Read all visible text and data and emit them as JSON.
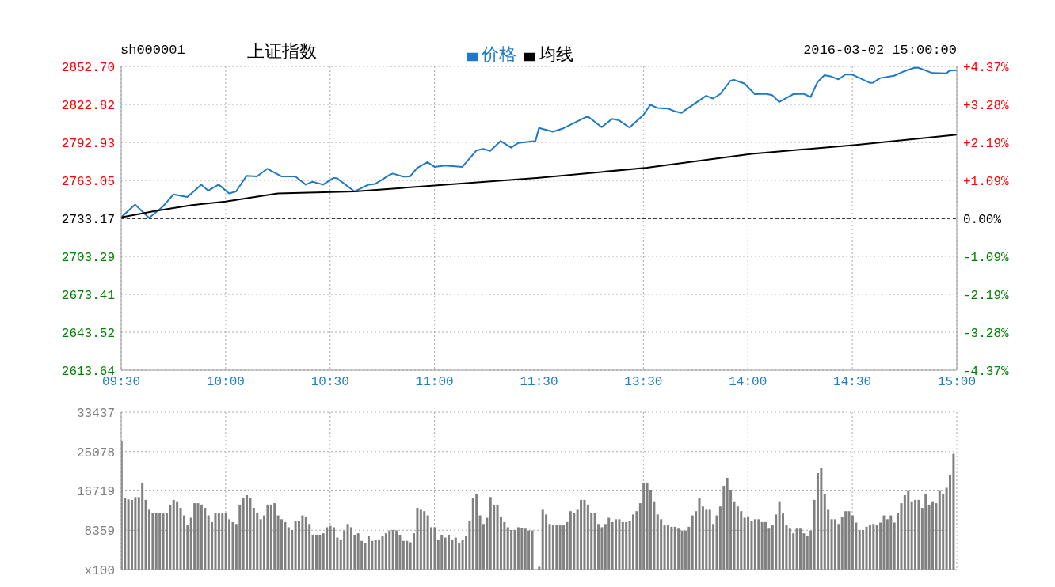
{
  "chart_data": [
    {
      "type": "line",
      "title": "上证指数",
      "subtitle": "sh000001",
      "annotations": [
        "2016-03-02 15:00:00"
      ],
      "categories": [
        "09:30",
        null,
        null,
        null,
        null,
        null,
        null,
        null,
        null,
        null,
        null,
        null,
        null,
        null,
        null,
        null,
        null,
        null,
        null,
        null,
        null,
        null,
        null,
        null,
        null,
        null,
        null,
        null,
        null,
        null,
        "10:00",
        null,
        null,
        null,
        null,
        null,
        null,
        null,
        null,
        null,
        null,
        null,
        null,
        null,
        null,
        null,
        null,
        null,
        null,
        null,
        null,
        null,
        null,
        null,
        null,
        null,
        null,
        null,
        null,
        null,
        "10:30",
        null,
        null,
        null,
        null,
        null,
        null,
        null,
        null,
        null,
        null,
        null,
        null,
        null,
        null,
        null,
        null,
        null,
        null,
        null,
        null,
        null,
        null,
        null,
        null,
        null,
        null,
        null,
        null,
        null,
        "11:00",
        null,
        null,
        null,
        null,
        null,
        null,
        null,
        null,
        null,
        null,
        null,
        null,
        null,
        null,
        null,
        null,
        null,
        null,
        null,
        null,
        null,
        null,
        null,
        null,
        null,
        null,
        null,
        null,
        null,
        "11:30",
        null,
        null,
        null,
        null,
        null,
        null,
        null,
        null,
        null,
        null,
        null,
        null,
        null,
        null,
        null,
        null,
        null,
        null,
        null,
        null,
        null,
        null,
        null,
        null,
        null,
        null,
        null,
        null,
        null,
        "13:30",
        null,
        null,
        null,
        null,
        null,
        null,
        null,
        null,
        null,
        null,
        null,
        null,
        null,
        null,
        null,
        null,
        null,
        null,
        null,
        null,
        null,
        null,
        null,
        null,
        null,
        null,
        null,
        null,
        null,
        "14:00",
        null,
        null,
        null,
        null,
        null,
        null,
        null,
        null,
        null,
        null,
        null,
        null,
        null,
        null,
        null,
        null,
        null,
        null,
        null,
        null,
        null,
        null,
        null,
        null,
        null,
        null,
        null,
        null,
        null,
        "14:30",
        null,
        null,
        null,
        null,
        null,
        null,
        null,
        null,
        null,
        null,
        null,
        null,
        null,
        null,
        null,
        null,
        null,
        null,
        null,
        null,
        null,
        null,
        null,
        null,
        null,
        null,
        null,
        null,
        null,
        "15:00"
      ],
      "ylim": [
        2613.64,
        2852.7
      ],
      "yticks": [
        2613.64,
        2643.52,
        2673.41,
        2703.29,
        2733.17,
        2763.05,
        2792.93,
        2822.82,
        {
          "value": 2852.7,
          "label": "2852.70"
        }
      ],
      "y2lim": [
        -4.37,
        4.37
      ],
      "y2ticks": [
        {
          "value": -4.37,
          "label": "-4.37%"
        },
        {
          "value": -3.28,
          "label": "-3.28%"
        },
        {
          "value": -2.19,
          "label": "-2.19%"
        },
        {
          "value": -1.09,
          "label": "-1.09%"
        },
        {
          "value": 0,
          "label": "0.00%"
        },
        {
          "value": 1.09,
          "label": "+1.09%"
        },
        {
          "value": 2.19,
          "label": "+2.19%"
        },
        {
          "value": 3.28,
          "label": "+3.28%"
        },
        {
          "value": 4.37,
          "label": "+4.37%"
        }
      ],
      "grid": true,
      "legend": "top",
      "ref_lines": [
        {
          "axis": "y",
          "value": 2733.17,
          "color": "#000000",
          "line_style": "dashed"
        }
      ],
      "series": [
        {
          "name": "价格",
          "color": "#1f78c8",
          "values": [
            2734,
            null,
            null,
            null,
            2744,
            null,
            null,
            null,
            2733.5,
            null,
            null,
            null,
            2742.5,
            null,
            null,
            2752,
            null,
            null,
            null,
            2750,
            null,
            null,
            null,
            2759.7,
            null,
            2755,
            null,
            null,
            2759.7,
            null,
            null,
            2752.8,
            null,
            2754.3,
            null,
            null,
            2766.6,
            null,
            null,
            2766.2,
            null,
            null,
            2772.2,
            null,
            null,
            null,
            2766.2,
            null,
            null,
            null,
            2766.2,
            null,
            null,
            2759.7,
            null,
            2762,
            null,
            null,
            2759.7,
            null,
            null,
            2765,
            2764.7,
            null,
            null,
            null,
            null,
            2754.3,
            null,
            null,
            null,
            2759.7,
            null,
            2760.3,
            null,
            null,
            null,
            2767.2,
            2768.4,
            null,
            null,
            2766,
            null,
            2766.2,
            null,
            2772.8,
            null,
            null,
            2777.4,
            null,
            2773.7,
            null,
            null,
            2774.7,
            null,
            null,
            null,
            null,
            2773.7,
            null,
            null,
            null,
            2786.5,
            null,
            2787.8,
            null,
            2786.2,
            null,
            null,
            2794,
            null,
            null,
            2788.8,
            null,
            2792.4,
            null,
            null,
            null,
            null,
            2794,
            2804.3,
            null,
            null,
            null,
            2801.3,
            null,
            null,
            2804,
            null,
            null,
            null,
            null,
            null,
            null,
            2813.5,
            null,
            null,
            null,
            2804.9,
            null,
            null,
            2811.5,
            null,
            2810.3,
            null,
            null,
            2804.6,
            null,
            null,
            null,
            2814.6,
            null,
            2822.6,
            null,
            2820,
            null,
            null,
            2819.6,
            null,
            2817.4,
            null,
            2816.1,
            2818.4,
            null,
            null,
            null,
            null,
            null,
            2829.6,
            null,
            2827.5,
            null,
            2830.9,
            null,
            null,
            2841.5,
            2842.1,
            null,
            null,
            2839.3,
            null,
            null,
            2830.9,
            null,
            null,
            2831.2,
            null,
            2830.2,
            null,
            2824.7,
            null,
            null,
            null,
            2830.9,
            null,
            null,
            2831.2,
            null,
            2828.6,
            null,
            2840.4,
            null,
            2845.8,
            null,
            2844.7,
            null,
            2842.6,
            null,
            2846.3,
            null,
            2846.3,
            null,
            null,
            null,
            null,
            2839.8,
            2840,
            null,
            2843.6,
            null,
            null,
            null,
            2845.4,
            null,
            null,
            2849,
            null,
            null,
            2851.8,
            2851.6,
            null,
            null,
            null,
            2847.5,
            null,
            null,
            null,
            2847.3,
            2849.5,
            null,
            2849.7
          ]
        },
        {
          "name": "均线",
          "color": "#000000",
          "values": [
            2734,
            null,
            null,
            null,
            null,
            null,
            null,
            null,
            null,
            null,
            2739.1,
            null,
            null,
            null,
            null,
            null,
            null,
            null,
            null,
            null,
            2743.5,
            null,
            null,
            null,
            null,
            null,
            null,
            null,
            null,
            null,
            2746.4,
            null,
            null,
            null,
            null,
            null,
            null,
            null,
            null,
            null,
            null,
            null,
            null,
            null,
            null,
            2752.8,
            null,
            null,
            null,
            null,
            null,
            null,
            null,
            null,
            null,
            null,
            null,
            null,
            null,
            null,
            null,
            null,
            null,
            null,
            null,
            null,
            null,
            2754.3,
            null,
            null,
            null,
            null,
            null,
            null,
            null,
            null,
            null,
            null,
            null,
            null,
            null,
            null,
            null,
            null,
            null,
            null,
            null,
            null,
            null,
            null,
            null,
            null,
            null,
            null,
            null,
            null,
            null,
            null,
            null,
            null,
            null,
            null,
            null,
            null,
            null,
            null,
            null,
            null,
            null,
            null,
            null,
            null,
            null,
            null,
            null,
            null,
            null,
            null,
            null,
            null,
            2765.1,
            null,
            null,
            null,
            null,
            null,
            null,
            null,
            null,
            null,
            null,
            null,
            null,
            null,
            null,
            null,
            null,
            null,
            null,
            null,
            null,
            null,
            null,
            null,
            null,
            null,
            null,
            null,
            null,
            null,
            null,
            2773,
            null,
            null,
            null,
            null,
            null,
            null,
            null,
            null,
            null,
            null,
            null,
            null,
            null,
            null,
            null,
            null,
            null,
            null,
            null,
            null,
            null,
            null,
            null,
            null,
            null,
            null,
            null,
            null,
            null,
            2783.9,
            null,
            null,
            null,
            null,
            null,
            null,
            null,
            null,
            null,
            null,
            null,
            null,
            null,
            null,
            null,
            null,
            null,
            null,
            null,
            null,
            null,
            null,
            null,
            null,
            null,
            null,
            null,
            null,
            null,
            2790.9,
            null,
            null,
            null,
            null,
            null,
            null,
            null,
            null,
            null,
            null,
            null,
            null,
            null,
            null,
            null,
            null,
            null,
            null,
            null,
            null,
            null,
            null,
            null,
            null,
            null,
            null,
            null,
            null,
            2799
          ]
        }
      ]
    },
    {
      "type": "bar",
      "color": "#808080",
      "categories": [
        null,
        null,
        null,
        null,
        null,
        null,
        null,
        null,
        null,
        null,
        null,
        null,
        null,
        null,
        null,
        null,
        null,
        null,
        null,
        null,
        null,
        null,
        null,
        null,
        null,
        null,
        null,
        null,
        null,
        null,
        null,
        null,
        null,
        null,
        null,
        null,
        null,
        null,
        null,
        null,
        null,
        null,
        null,
        null,
        null,
        null,
        null,
        null,
        null,
        null,
        null,
        null,
        null,
        null,
        null,
        null,
        null,
        null,
        null,
        null,
        null,
        null,
        null,
        null,
        null,
        null,
        null,
        null,
        null,
        null,
        null,
        null,
        null,
        null,
        null,
        null,
        null,
        null,
        null,
        null,
        null,
        null,
        null,
        null,
        null,
        null,
        null,
        null,
        null,
        null,
        null,
        null,
        null,
        null,
        null,
        null,
        null,
        null,
        null,
        null,
        null,
        null,
        null,
        null,
        null,
        null,
        null,
        null,
        null,
        null,
        null,
        null,
        null,
        null,
        null,
        null,
        null,
        null,
        null,
        null,
        null,
        null,
        null,
        null,
        null,
        null,
        null,
        null,
        null,
        null,
        null,
        null,
        null,
        null,
        null,
        null,
        null,
        null,
        null,
        null,
        null,
        null,
        null,
        null,
        null,
        null,
        null,
        null,
        null,
        null,
        null,
        null,
        null,
        null,
        null,
        null,
        null,
        null,
        null,
        null,
        null,
        null,
        null,
        null,
        null,
        null,
        null,
        null,
        null,
        null,
        null,
        null,
        null,
        null,
        null,
        null,
        null,
        null,
        null,
        null,
        null,
        null,
        null,
        null,
        null,
        null,
        null,
        null,
        null,
        null,
        null,
        null,
        null,
        null,
        null,
        null,
        null,
        null,
        null,
        null,
        null,
        null,
        null,
        null,
        null,
        null,
        null,
        null,
        null,
        null,
        null,
        null,
        null,
        null,
        null,
        null,
        null,
        null,
        null,
        null,
        null,
        null,
        null,
        null,
        null,
        null,
        null,
        null,
        null,
        null,
        null,
        null,
        null,
        null,
        null,
        null,
        null,
        null,
        null,
        null,
        null
      ],
      "ylim": [
        0,
        33437
      ],
      "yticks": [
        {
          "value": 0,
          "label": "x100"
        },
        8359,
        16719,
        25078,
        33437
      ],
      "grid": true,
      "values": [
        27200,
        15200,
        14900,
        14800,
        15400,
        15400,
        18500,
        14800,
        12700,
        12100,
        12100,
        12100,
        11900,
        12100,
        13800,
        14800,
        14500,
        13100,
        11500,
        9400,
        11000,
        14100,
        14100,
        13800,
        13100,
        11500,
        10100,
        12100,
        12100,
        11900,
        12100,
        10700,
        10100,
        9700,
        13800,
        15200,
        15800,
        15200,
        13100,
        12100,
        10700,
        11500,
        13800,
        13800,
        14100,
        11500,
        10700,
        10100,
        9000,
        8400,
        10400,
        10400,
        11500,
        11200,
        9700,
        7400,
        7400,
        7400,
        7700,
        9000,
        9300,
        9000,
        6800,
        6400,
        8300,
        9700,
        9000,
        7400,
        7700,
        6100,
        5700,
        7100,
        6100,
        6400,
        6400,
        7100,
        7700,
        8300,
        8400,
        8300,
        7400,
        6100,
        6100,
        5800,
        7700,
        13100,
        12700,
        12400,
        11500,
        9000,
        9000,
        6400,
        7400,
        6800,
        7400,
        6400,
        6800,
        5700,
        6400,
        7100,
        10400,
        15200,
        16100,
        11500,
        9700,
        11000,
        15400,
        13800,
        13800,
        11200,
        10100,
        9000,
        8400,
        8400,
        9000,
        8800,
        8700,
        8300,
        8300,
        null,
        600,
        12700,
        11700,
        9700,
        9400,
        9400,
        9400,
        9400,
        10100,
        12400,
        12100,
        12700,
        14800,
        14800,
        13800,
        12100,
        12100,
        9700,
        9000,
        9700,
        11000,
        10100,
        10700,
        10700,
        10100,
        10100,
        10400,
        11700,
        12400,
        14100,
        18500,
        18500,
        16800,
        14500,
        11700,
        10700,
        9400,
        9400,
        9100,
        9100,
        8700,
        8300,
        8300,
        9100,
        11500,
        12400,
        15200,
        13400,
        12700,
        12700,
        9700,
        11500,
        13400,
        17800,
        19500,
        16800,
        14500,
        13400,
        12400,
        11000,
        11300,
        10400,
        10700,
        10700,
        10100,
        10100,
        8700,
        9400,
        11700,
        14500,
        11900,
        9400,
        8700,
        7700,
        8700,
        8700,
        7700,
        7100,
        8300,
        14800,
        20500,
        21500,
        16100,
        12700,
        10700,
        10700,
        9700,
        11100,
        12400,
        12400,
        11500,
        10000,
        8400,
        8400,
        9100,
        9400,
        9700,
        9400,
        10000,
        11500,
        10700,
        11500,
        10000,
        12000,
        14100,
        15800,
        16700,
        14500,
        14800,
        14800,
        13100,
        16100,
        13800,
        14500,
        14100,
        16700,
        16100,
        17400,
        20100,
        24600,
        null
      ]
    }
  ]
}
